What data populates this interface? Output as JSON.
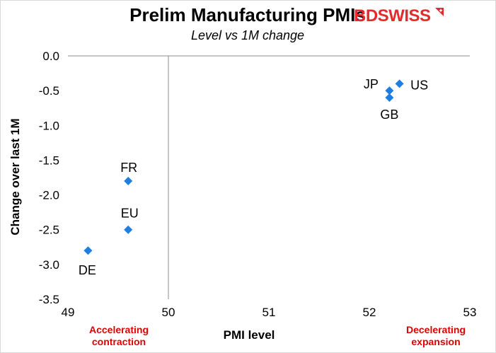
{
  "title": "Prelim Manufacturing PMIs",
  "subtitle": "Level vs 1M change",
  "logo": {
    "part1": "BD",
    "part2": "SWISS"
  },
  "chart_data": {
    "type": "scatter",
    "title": "Prelim Manufacturing PMIs",
    "subtitle": "Level vs 1M change",
    "xlabel": "PMI level",
    "ylabel": "Change over last 1M",
    "xlim": [
      49,
      53
    ],
    "ylim": [
      -3.5,
      0.0
    ],
    "xticks": [
      49,
      50,
      51,
      52,
      53
    ],
    "xtick_labels": [
      "49",
      "50",
      "51",
      "52",
      "53"
    ],
    "yticks": [
      0.0,
      -0.5,
      -1.0,
      -1.5,
      -2.0,
      -2.5,
      -3.0,
      -3.5
    ],
    "ytick_labels": [
      "0.0",
      "-0.5",
      "-1.0",
      "-1.5",
      "-2.0",
      "-2.5",
      "-3.0",
      "-3.5"
    ],
    "crosshair": {
      "x": 50,
      "y": 0.0
    },
    "grid": false,
    "marker_color": "#1e7fe0",
    "points": [
      {
        "label": "JP",
        "x": 52.2,
        "y": -0.5
      },
      {
        "label": "US",
        "x": 52.3,
        "y": -0.4
      },
      {
        "label": "GB",
        "x": 52.2,
        "y": -0.6
      },
      {
        "label": "FR",
        "x": 49.6,
        "y": -1.8
      },
      {
        "label": "EU",
        "x": 49.6,
        "y": -2.5
      },
      {
        "label": "DE",
        "x": 49.2,
        "y": -2.8
      }
    ],
    "annotations": {
      "left": "Accelerating contraction",
      "right": "Decelerating expansion"
    },
    "annotation_color": "#e00000"
  }
}
